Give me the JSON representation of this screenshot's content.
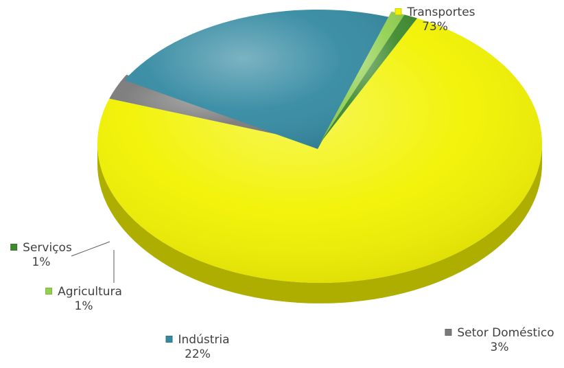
{
  "chart_data": {
    "type": "pie",
    "title": "",
    "slices": [
      {
        "label": "Transportes",
        "pct_label": "73%",
        "value": 73,
        "color": "#f2f200"
      },
      {
        "label": "Setor Doméstico",
        "pct_label": "3%",
        "value": 3,
        "color": "#7a7a7a"
      },
      {
        "label": "Indústria",
        "pct_label": "22%",
        "value": 22,
        "color": "#348aa2"
      },
      {
        "label": "Agricultura",
        "pct_label": "1%",
        "value": 1,
        "color": "#92d050"
      },
      {
        "label": "Serviços",
        "pct_label": "1%",
        "value": 1,
        "color": "#3e8a2e"
      }
    ],
    "legend": "data labels next to slices",
    "style": "3D exploded pie"
  }
}
